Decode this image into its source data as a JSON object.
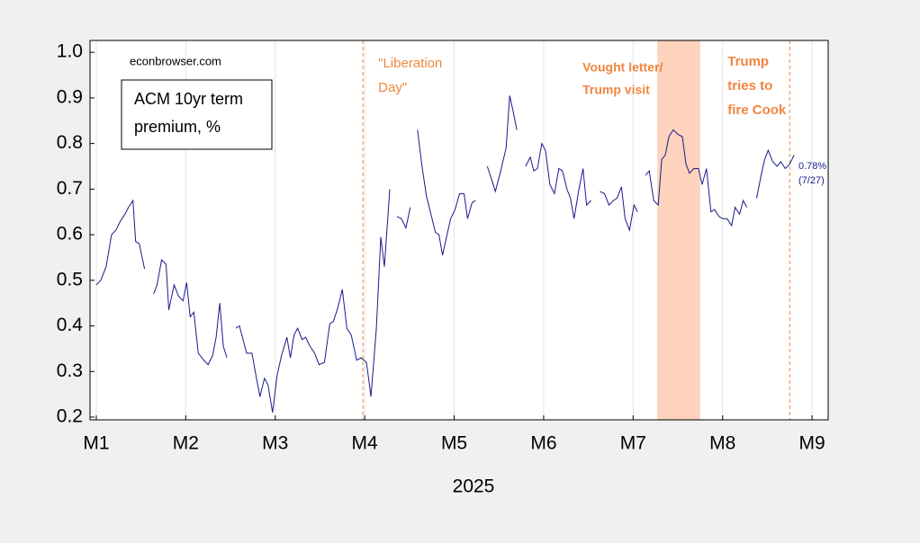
{
  "chart_data": {
    "type": "line",
    "watermark": "econbrowser.com",
    "legend_text": [
      "ACM 10yr term",
      "premium, %"
    ],
    "xlabel": "2025",
    "xlim": [
      0.93,
      9.18
    ],
    "xticks": [
      {
        "value": 1,
        "label": "M1"
      },
      {
        "value": 2,
        "label": "M2"
      },
      {
        "value": 3,
        "label": "M3"
      },
      {
        "value": 4,
        "label": "M4"
      },
      {
        "value": 5,
        "label": "M5"
      },
      {
        "value": 6,
        "label": "M6"
      },
      {
        "value": 7,
        "label": "M7"
      },
      {
        "value": 8,
        "label": "M8"
      },
      {
        "value": 9,
        "label": "M9"
      }
    ],
    "ylim": [
      0.194,
      1.026
    ],
    "yticks": [
      0.2,
      0.3,
      0.4,
      0.5,
      0.6,
      0.7,
      0.8,
      0.9,
      {
        "value": 1,
        "label": "1.0"
      }
    ],
    "grid": "x",
    "series": [
      {
        "name": "ACM 10yr term premium",
        "color": "#1a1a8c",
        "x": [
          1.0,
          1.05,
          1.11,
          1.17,
          1.22,
          1.27,
          1.32,
          1.36,
          1.41,
          1.44,
          1.48,
          1.54,
          1.59,
          1.64,
          1.68,
          1.73,
          1.78,
          1.81,
          1.87,
          1.92,
          1.97,
          2.01,
          2.05,
          2.09,
          2.14,
          2.2,
          2.25,
          2.3,
          2.34,
          2.38,
          2.42,
          2.46,
          2.51,
          2.56,
          2.6,
          2.64,
          2.68,
          2.74,
          2.79,
          2.83,
          2.88,
          2.92,
          2.97,
          3.02,
          3.07,
          3.13,
          3.17,
          3.21,
          3.25,
          3.3,
          3.34,
          3.39,
          3.44,
          3.49,
          3.55,
          3.61,
          3.65,
          3.7,
          3.75,
          3.8,
          3.85,
          3.91,
          3.96,
          4.02,
          4.07,
          4.13,
          4.18,
          4.22,
          4.28,
          4.32,
          4.36,
          4.41,
          4.46,
          4.51,
          4.55,
          4.59,
          4.64,
          4.69,
          4.74,
          4.79,
          4.83,
          4.87,
          4.92,
          4.96,
          5.01,
          5.06,
          5.11,
          5.15,
          5.2,
          5.24,
          5.3,
          5.37,
          5.42,
          5.46,
          5.52,
          5.58,
          5.62,
          5.66,
          5.7,
          5.75,
          5.8,
          5.85,
          5.89,
          5.93,
          5.98,
          6.02,
          6.07,
          6.12,
          6.17,
          6.21,
          6.26,
          6.3,
          6.34,
          6.39,
          6.44,
          6.48,
          6.53,
          6.58,
          6.63,
          6.68,
          6.73,
          6.78,
          6.82,
          6.87,
          6.91,
          6.96,
          7.01,
          7.05,
          7.1,
          7.14,
          7.18,
          7.23,
          7.28,
          7.32,
          7.36,
          7.4,
          7.45,
          7.5,
          7.55,
          7.59,
          7.63,
          7.68,
          7.73,
          7.77,
          7.82,
          7.87,
          7.91,
          7.96,
          8.0,
          8.05,
          8.1,
          8.14,
          8.19,
          8.23,
          8.27,
          8.33,
          8.38,
          8.43,
          8.47,
          8.51,
          8.56,
          8.61,
          8.65,
          8.7,
          8.75,
          8.8
        ],
        "values": [
          0.49,
          0.5,
          0.53,
          0.6,
          0.61,
          0.63,
          0.645,
          0.66,
          0.675,
          0.585,
          0.58,
          0.525,
          null,
          0.47,
          0.49,
          0.545,
          0.535,
          0.435,
          0.49,
          0.465,
          0.455,
          0.495,
          0.42,
          0.43,
          0.34,
          0.325,
          0.315,
          0.335,
          0.375,
          0.45,
          0.355,
          0.33,
          null,
          0.395,
          0.4,
          0.37,
          0.34,
          0.34,
          0.285,
          0.245,
          0.285,
          0.27,
          0.21,
          0.29,
          0.335,
          0.375,
          0.33,
          0.38,
          0.395,
          0.37,
          0.375,
          0.355,
          0.34,
          0.315,
          0.32,
          0.405,
          0.41,
          0.44,
          0.48,
          0.395,
          0.38,
          0.325,
          0.33,
          0.32,
          0.245,
          0.395,
          0.595,
          0.53,
          0.7,
          null,
          0.64,
          0.635,
          0.615,
          0.66,
          null,
          0.83,
          0.75,
          0.685,
          0.645,
          0.605,
          0.6,
          0.555,
          0.6,
          0.635,
          0.655,
          0.69,
          0.69,
          0.635,
          0.67,
          0.675,
          null,
          0.75,
          0.72,
          0.695,
          0.74,
          0.79,
          0.905,
          0.87,
          0.83,
          null,
          0.75,
          0.77,
          0.74,
          0.745,
          0.8,
          0.785,
          0.71,
          0.69,
          0.745,
          0.74,
          0.7,
          0.68,
          0.635,
          0.695,
          0.745,
          0.665,
          0.675,
          null,
          0.695,
          0.69,
          0.665,
          0.675,
          0.68,
          0.705,
          0.635,
          0.61,
          0.665,
          0.65,
          null,
          0.73,
          0.74,
          0.675,
          0.665,
          0.765,
          0.775,
          0.815,
          0.83,
          0.82,
          0.815,
          0.755,
          0.735,
          0.745,
          0.745,
          0.71,
          0.745,
          0.65,
          0.655,
          0.64,
          0.635,
          0.635,
          0.62,
          0.66,
          0.645,
          0.675,
          0.66,
          null,
          0.68,
          0.73,
          0.765,
          0.785,
          0.76,
          0.75,
          0.76,
          0.745,
          0.755,
          0.775
        ]
      }
    ],
    "end_label": [
      "0.78%",
      "(7/27)"
    ],
    "event_color": "#f0853f",
    "events": [
      {
        "x": 3.98,
        "label": [
          "\"Liberation",
          "Day\""
        ],
        "bold": false
      },
      {
        "x": 8.75,
        "label": [
          "Trump",
          "tries to",
          "fire Cook"
        ],
        "bold": true
      }
    ],
    "shade": {
      "x": [
        7.27,
        7.75
      ],
      "color": "#fdd3bd",
      "label": [
        "Vought letter/",
        "Trump visit"
      ],
      "bold": true
    }
  }
}
